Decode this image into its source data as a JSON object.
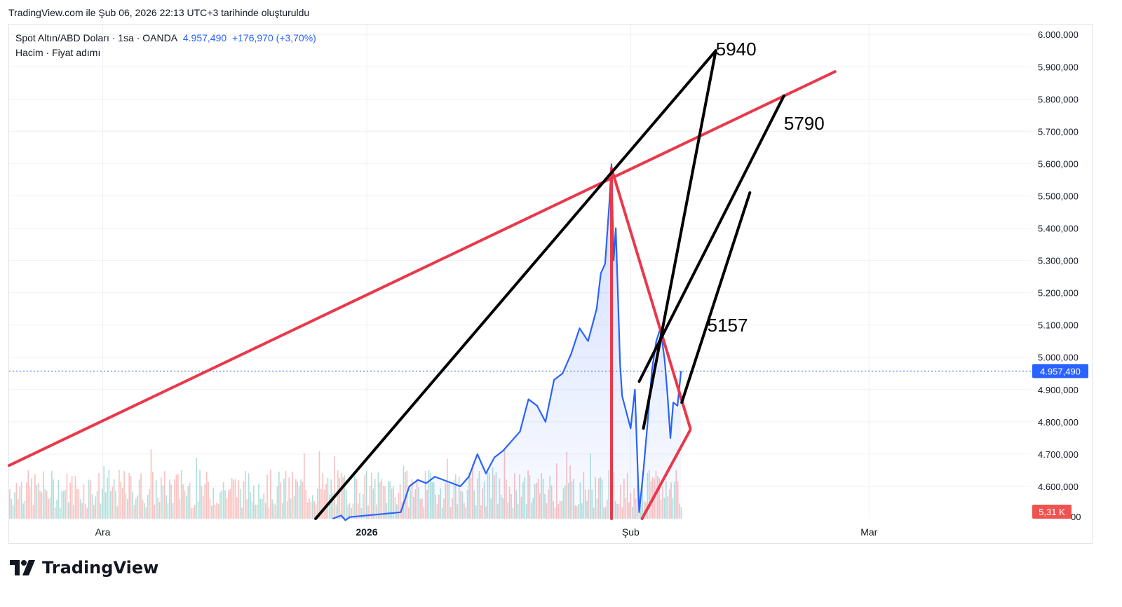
{
  "caption": "TradingView.com ile Şub 06, 2026 22:13 UTC+3 tarihinde oluşturuldu",
  "legend": {
    "symbol": "Spot Altın/ABD Doları · 1sa · OANDA",
    "price": "4.957,490",
    "change": "+176,970 (+3,70%)",
    "indicators": "Hacim · Fiyat adımı"
  },
  "brand": {
    "name": "TradingView"
  },
  "colors": {
    "price_line": "#2962ff",
    "trendline_red": "#e8394b",
    "trendline_black": "#000000",
    "volume_up": "#26a69a",
    "volume_down": "#ef5350",
    "badge_price": "#2962ff",
    "badge_volume": "#ef5350",
    "grid": "#eef0f4"
  },
  "chart_data": {
    "type": "line",
    "series": [
      {
        "points": [
          [
            "2025-12-28",
            4500
          ],
          [
            "2025-12-29",
            4510
          ],
          [
            "2025-12-29 12:00",
            4495
          ],
          [
            "2025-12-30",
            4505
          ],
          [
            "2026-01-05",
            4520
          ],
          [
            "2026-01-06",
            4600
          ],
          [
            "2026-01-07",
            4620
          ],
          [
            "2026-01-08",
            4610
          ],
          [
            "2026-01-09",
            4630
          ],
          [
            "2026-01-12",
            4600
          ],
          [
            "2026-01-13",
            4630
          ],
          [
            "2026-01-14",
            4700
          ],
          [
            "2026-01-15",
            4640
          ],
          [
            "2026-01-16",
            4690
          ],
          [
            "2026-01-17",
            4710
          ],
          [
            "2026-01-19",
            4770
          ],
          [
            "2026-01-20",
            4870
          ],
          [
            "2026-01-21",
            4850
          ],
          [
            "2026-01-22",
            4800
          ],
          [
            "2026-01-23",
            4930
          ],
          [
            "2026-01-24",
            4950
          ],
          [
            "2026-01-25",
            5010
          ],
          [
            "2026-01-26",
            5090
          ],
          [
            "2026-01-27",
            5050
          ],
          [
            "2026-01-28",
            5150
          ],
          [
            "2026-01-28 12:00",
            5260
          ],
          [
            "2026-01-29",
            5290
          ],
          [
            "2026-01-29 12:00",
            5480
          ],
          [
            "2026-01-29 18:00",
            5598
          ],
          [
            "2026-01-30",
            5300
          ],
          [
            "2026-01-30 06:00",
            5400
          ],
          [
            "2026-01-30 12:00",
            5200
          ],
          [
            "2026-01-30 18:00",
            4980
          ],
          [
            "2026-01-31",
            4880
          ],
          [
            "2026-02-01",
            4780
          ],
          [
            "2026-02-01 12:00",
            4900
          ],
          [
            "2026-02-02",
            4520
          ],
          [
            "2026-02-02 12:00",
            4650
          ],
          [
            "2026-02-03",
            4800
          ],
          [
            "2026-02-03 12:00",
            4960
          ],
          [
            "2026-02-04",
            5050
          ],
          [
            "2026-02-04 12:00",
            5090
          ],
          [
            "2026-02-05",
            4990
          ],
          [
            "2026-02-05 08:00",
            4880
          ],
          [
            "2026-02-05 16:00",
            4750
          ],
          [
            "2026-02-06",
            4860
          ],
          [
            "2026-02-06 12:00",
            4850
          ],
          [
            "2026-02-06 22:00",
            4957.49
          ]
        ]
      }
    ],
    "x_ticks": [
      {
        "date": "2025-12-01",
        "label": "Ara"
      },
      {
        "date": "2026-01-01",
        "label": "2026"
      },
      {
        "date": "2026-02-01",
        "label": "Şub"
      },
      {
        "date": "2026-03-01",
        "label": "Mar"
      }
    ],
    "y_ticks": [
      "4.600,000",
      "4.700,000",
      "4.800,000",
      "4.900,000",
      "5.000,000",
      "5.100,000",
      "5.200,000",
      "5.300,000",
      "5.400,000",
      "5.500,000",
      "5.600,000",
      "5.700,000",
      "5.800,000",
      "5.900,000",
      "6.000,000"
    ],
    "y_tick_values": [
      4600,
      4700,
      4800,
      4900,
      5000,
      5100,
      5200,
      5300,
      5400,
      5500,
      5600,
      5700,
      5800,
      5900,
      6000
    ],
    "y_tick_partial": "00",
    "ylim": [
      4500,
      6020
    ],
    "xlim": [
      "2025-11-20",
      "2026-03-20"
    ],
    "current_price": {
      "value": 4957.49,
      "label": "4.957,490"
    },
    "volume": {
      "label": "5,31 K",
      "max": 5.31
    },
    "annotations": [
      {
        "text": "5940",
        "at": [
          "2026-02-11",
          5935
        ]
      },
      {
        "text": "5790",
        "at": [
          "2026-02-19",
          5705
        ]
      },
      {
        "text": "5157",
        "at": [
          "2026-02-10",
          5080
        ]
      }
    ],
    "drawings": [
      {
        "color": "red",
        "from": [
          "2025-11-20",
          4665
        ],
        "to": [
          "2026-02-25",
          5885
        ]
      },
      {
        "color": "red",
        "from": [
          "2026-01-29 18:00",
          5585
        ],
        "to": [
          "2026-02-08",
          4780
        ]
      },
      {
        "color": "red",
        "from": [
          "2026-01-29 18:00",
          5585
        ],
        "to": [
          "2026-01-29 18:00",
          4500
        ]
      },
      {
        "color": "red",
        "from": [
          "2026-02-08",
          4775
        ],
        "to": [
          "2026-02-02 08:00",
          4500
        ]
      },
      {
        "color": "black",
        "from": [
          "2025-12-26",
          4500
        ],
        "to": [
          "2026-02-11",
          5950
        ]
      },
      {
        "color": "black",
        "from": [
          "2026-02-02 12:00",
          4780
        ],
        "to": [
          "2026-02-11",
          5950
        ]
      },
      {
        "color": "black",
        "from": [
          "2026-02-02",
          4925
        ],
        "to": [
          "2026-02-19",
          5810
        ]
      },
      {
        "color": "black",
        "from": [
          "2026-02-07",
          4860
        ],
        "to": [
          "2026-02-15",
          5510
        ]
      }
    ]
  }
}
